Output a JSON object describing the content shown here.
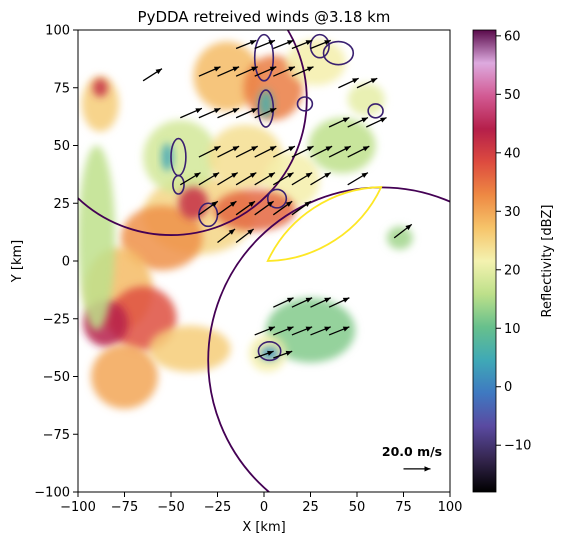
{
  "chart_data": {
    "type": "heatmap",
    "title": "PyDDA retreived winds @3.18 km",
    "xlabel": "X [km]",
    "ylabel": "Y [km]",
    "xlim": [
      -100,
      100
    ],
    "ylim": [
      -100,
      100
    ],
    "x_ticks": [
      -100,
      -75,
      -50,
      -25,
      0,
      25,
      50,
      75,
      100
    ],
    "y_ticks": [
      -100,
      -75,
      -50,
      -25,
      0,
      25,
      50,
      75,
      100
    ],
    "x_tick_labels": [
      "−100",
      "−75",
      "−50",
      "−25",
      "0",
      "25",
      "50",
      "75",
      "100"
    ],
    "y_tick_labels": [
      "−100",
      "−75",
      "−50",
      "−25",
      "0",
      "25",
      "50",
      "75",
      "100"
    ],
    "colorbar": {
      "label": "Reflectivity [dBZ]",
      "range": [
        -18,
        61
      ],
      "ticks": [
        -10,
        0,
        10,
        20,
        30,
        40,
        50,
        60
      ],
      "tick_labels": [
        "−10",
        "0",
        "10",
        "20",
        "30",
        "40",
        "50",
        "60"
      ],
      "colormap": "HomeyerRainbow",
      "stops": [
        "#000000",
        "#35264f",
        "#5a4aa1",
        "#3f79c1",
        "#3fa9b6",
        "#67c08c",
        "#bde08a",
        "#f4f2b0",
        "#f6c46a",
        "#ee8943",
        "#dd4b3f",
        "#b51f4a",
        "#d25a93",
        "#ddaadf",
        "#590a4a"
      ]
    },
    "reflectivity_cells": [
      {
        "x": -35,
        "y": 20,
        "rx": 30,
        "ry": 17,
        "dbz": 25
      },
      {
        "x": -55,
        "y": 10,
        "rx": 22,
        "ry": 14,
        "dbz": 32
      },
      {
        "x": -78,
        "y": -12,
        "rx": 18,
        "ry": 18,
        "dbz": 28
      },
      {
        "x": -65,
        "y": -25,
        "rx": 18,
        "ry": 14,
        "dbz": 38
      },
      {
        "x": -85,
        "y": -27,
        "rx": 12,
        "ry": 10,
        "dbz": 44
      },
      {
        "x": -75,
        "y": -50,
        "rx": 18,
        "ry": 14,
        "dbz": 30
      },
      {
        "x": -40,
        "y": -38,
        "rx": 22,
        "ry": 10,
        "dbz": 26
      },
      {
        "x": -45,
        "y": 45,
        "rx": 20,
        "ry": 16,
        "dbz": 18
      },
      {
        "x": -20,
        "y": 80,
        "rx": 18,
        "ry": 15,
        "dbz": 28
      },
      {
        "x": 5,
        "y": 75,
        "rx": 16,
        "ry": 14,
        "dbz": 34
      },
      {
        "x": 28,
        "y": 86,
        "rx": 16,
        "ry": 10,
        "dbz": 22
      },
      {
        "x": -10,
        "y": 45,
        "rx": 20,
        "ry": 14,
        "dbz": 24
      },
      {
        "x": 15,
        "y": 35,
        "rx": 15,
        "ry": 12,
        "dbz": 22
      },
      {
        "x": 42,
        "y": 50,
        "rx": 18,
        "ry": 12,
        "dbz": 16
      },
      {
        "x": -5,
        "y": 22,
        "rx": 22,
        "ry": 9,
        "dbz": 36
      },
      {
        "x": 25,
        "y": -30,
        "rx": 24,
        "ry": 14,
        "dbz": 12
      },
      {
        "x": 2,
        "y": -40,
        "rx": 10,
        "ry": 8,
        "dbz": 22
      },
      {
        "x": 55,
        "y": 70,
        "rx": 10,
        "ry": 7,
        "dbz": 20
      },
      {
        "x": 73,
        "y": 10,
        "rx": 7,
        "ry": 5,
        "dbz": 14
      },
      {
        "x": -88,
        "y": 68,
        "rx": 10,
        "ry": 12,
        "dbz": 26
      },
      {
        "x": -88,
        "y": 75,
        "rx": 4,
        "ry": 4,
        "dbz": 42
      },
      {
        "x": -90,
        "y": 10,
        "rx": 10,
        "ry": 40,
        "dbz": 16
      },
      {
        "x": -38,
        "y": 25,
        "rx": 8,
        "ry": 7,
        "dbz": 42
      },
      {
        "x": -52,
        "y": 45,
        "rx": 3,
        "ry": 6,
        "dbz": 4
      },
      {
        "x": 1,
        "y": 68,
        "rx": 4,
        "ry": 6,
        "dbz": 6
      },
      {
        "x": 3,
        "y": -40,
        "rx": 5,
        "ry": 3,
        "dbz": 2
      }
    ],
    "wind_vectors": [
      {
        "x": -15,
        "y": 92,
        "u": 15,
        "v": 6
      },
      {
        "x": -5,
        "y": 92,
        "u": 15,
        "v": 6
      },
      {
        "x": 5,
        "y": 92,
        "u": 15,
        "v": 6
      },
      {
        "x": 15,
        "y": 92,
        "u": 15,
        "v": 6
      },
      {
        "x": 25,
        "y": 92,
        "u": 15,
        "v": 6
      },
      {
        "x": -35,
        "y": 80,
        "u": 16,
        "v": 7
      },
      {
        "x": -25,
        "y": 80,
        "u": 16,
        "v": 7
      },
      {
        "x": -15,
        "y": 80,
        "u": 16,
        "v": 7
      },
      {
        "x": -5,
        "y": 80,
        "u": 16,
        "v": 7
      },
      {
        "x": 5,
        "y": 80,
        "u": 16,
        "v": 7
      },
      {
        "x": 15,
        "y": 80,
        "u": 16,
        "v": 7
      },
      {
        "x": -65,
        "y": 78,
        "u": 14,
        "v": 9
      },
      {
        "x": -45,
        "y": 62,
        "u": 16,
        "v": 7
      },
      {
        "x": -35,
        "y": 62,
        "u": 16,
        "v": 7
      },
      {
        "x": -25,
        "y": 62,
        "u": 16,
        "v": 7
      },
      {
        "x": -15,
        "y": 62,
        "u": 16,
        "v": 7
      },
      {
        "x": -5,
        "y": 62,
        "u": 16,
        "v": 7
      },
      {
        "x": 35,
        "y": 58,
        "u": 15,
        "v": 7
      },
      {
        "x": 45,
        "y": 58,
        "u": 15,
        "v": 7
      },
      {
        "x": 55,
        "y": 58,
        "u": 15,
        "v": 7
      },
      {
        "x": -35,
        "y": 45,
        "u": 16,
        "v": 8
      },
      {
        "x": -25,
        "y": 45,
        "u": 16,
        "v": 8
      },
      {
        "x": -15,
        "y": 45,
        "u": 16,
        "v": 8
      },
      {
        "x": -5,
        "y": 45,
        "u": 16,
        "v": 8
      },
      {
        "x": 5,
        "y": 45,
        "u": 16,
        "v": 8
      },
      {
        "x": 15,
        "y": 45,
        "u": 16,
        "v": 8
      },
      {
        "x": 25,
        "y": 45,
        "u": 16,
        "v": 8
      },
      {
        "x": 35,
        "y": 45,
        "u": 16,
        "v": 8
      },
      {
        "x": 45,
        "y": 45,
        "u": 16,
        "v": 8
      },
      {
        "x": -45,
        "y": 33,
        "u": 15,
        "v": 9
      },
      {
        "x": -35,
        "y": 33,
        "u": 15,
        "v": 9
      },
      {
        "x": -25,
        "y": 33,
        "u": 15,
        "v": 9
      },
      {
        "x": -15,
        "y": 33,
        "u": 15,
        "v": 9
      },
      {
        "x": -5,
        "y": 33,
        "u": 15,
        "v": 9
      },
      {
        "x": 5,
        "y": 33,
        "u": 15,
        "v": 9
      },
      {
        "x": 15,
        "y": 33,
        "u": 15,
        "v": 9
      },
      {
        "x": 25,
        "y": 33,
        "u": 15,
        "v": 9
      },
      {
        "x": 45,
        "y": 33,
        "u": 15,
        "v": 9
      },
      {
        "x": -35,
        "y": 20,
        "u": 14,
        "v": 10
      },
      {
        "x": -25,
        "y": 20,
        "u": 14,
        "v": 10
      },
      {
        "x": -15,
        "y": 20,
        "u": 14,
        "v": 10
      },
      {
        "x": -5,
        "y": 20,
        "u": 14,
        "v": 10
      },
      {
        "x": 5,
        "y": 20,
        "u": 14,
        "v": 10
      },
      {
        "x": 15,
        "y": 20,
        "u": 14,
        "v": 10
      },
      {
        "x": -25,
        "y": 8,
        "u": 13,
        "v": 10
      },
      {
        "x": -15,
        "y": 8,
        "u": 13,
        "v": 10
      },
      {
        "x": 50,
        "y": 75,
        "u": 15,
        "v": 7
      },
      {
        "x": 40,
        "y": 75,
        "u": 15,
        "v": 7
      },
      {
        "x": 70,
        "y": 10,
        "u": 13,
        "v": 10
      },
      {
        "x": 5,
        "y": -20,
        "u": 15,
        "v": 7
      },
      {
        "x": 15,
        "y": -20,
        "u": 15,
        "v": 7
      },
      {
        "x": 25,
        "y": -20,
        "u": 15,
        "v": 7
      },
      {
        "x": 35,
        "y": -20,
        "u": 15,
        "v": 7
      },
      {
        "x": -5,
        "y": -32,
        "u": 15,
        "v": 6
      },
      {
        "x": 5,
        "y": -32,
        "u": 15,
        "v": 6
      },
      {
        "x": 15,
        "y": -32,
        "u": 15,
        "v": 6
      },
      {
        "x": 25,
        "y": -32,
        "u": 15,
        "v": 6
      },
      {
        "x": 35,
        "y": -32,
        "u": 15,
        "v": 6
      },
      {
        "x": -5,
        "y": -42,
        "u": 14,
        "v": 5
      },
      {
        "x": 5,
        "y": -42,
        "u": 14,
        "v": 5
      }
    ],
    "vector_scale": {
      "label": "20.0 m/s",
      "x": 75,
      "y": -90,
      "u": 20,
      "v": 0
    },
    "contours": [
      {
        "type": "circle",
        "cx": -50,
        "cy": 70,
        "r": 73,
        "color": "#440154"
      },
      {
        "type": "circle",
        "cx": 63,
        "cy": -43,
        "r": 93,
        "color": "#440154"
      },
      {
        "type": "lens",
        "from": [
          2,
          0
        ],
        "to": [
          63,
          32
        ],
        "color": "#fde725"
      }
    ],
    "contour_blobs": [
      {
        "x": -46,
        "y": 45,
        "rx": 4,
        "ry": 8
      },
      {
        "x": -46,
        "y": 33,
        "rx": 3,
        "ry": 4
      },
      {
        "x": 1,
        "y": 66,
        "rx": 4,
        "ry": 8
      },
      {
        "x": 0,
        "y": 88,
        "rx": 5,
        "ry": 10
      },
      {
        "x": 30,
        "y": 93,
        "rx": 5,
        "ry": 5
      },
      {
        "x": 40,
        "y": 90,
        "rx": 8,
        "ry": 5
      },
      {
        "x": 3,
        "y": -39,
        "rx": 6,
        "ry": 4
      },
      {
        "x": 7,
        "y": 27,
        "rx": 5,
        "ry": 4
      },
      {
        "x": 22,
        "y": 68,
        "rx": 4,
        "ry": 3
      },
      {
        "x": -30,
        "y": 20,
        "rx": 5,
        "ry": 5
      },
      {
        "x": 60,
        "y": 65,
        "rx": 4,
        "ry": 3
      }
    ]
  }
}
